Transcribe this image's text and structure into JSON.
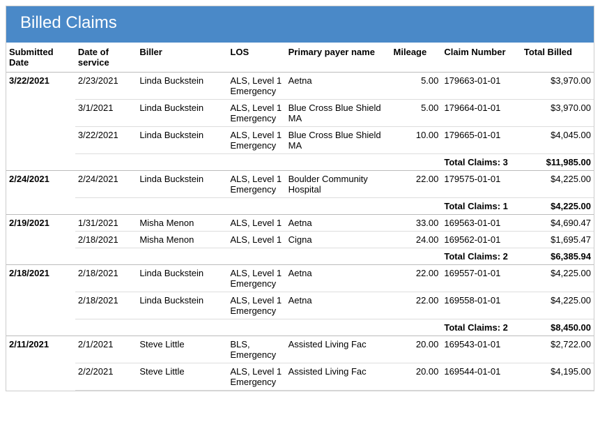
{
  "title": "Billed Claims",
  "columns": [
    "Submitted Date",
    "Date of service",
    "Biller",
    "LOS",
    "Primary payer name",
    "Mileage",
    "Claim Number",
    "Total Billed"
  ],
  "groups": [
    {
      "submitted": "3/22/2021",
      "rows": [
        {
          "dos": "2/23/2021",
          "biller": "Linda Buckstein",
          "los": "ALS, Level 1 Emergency",
          "payer": "Aetna",
          "mileage": "5.00",
          "claim": "179663-01-01",
          "billed": "$3,970.00"
        },
        {
          "dos": "3/1/2021",
          "biller": "Linda Buckstein",
          "los": "ALS, Level 1 Emergency",
          "payer": "Blue Cross Blue Shield MA",
          "mileage": "5.00",
          "claim": "179664-01-01",
          "billed": "$3,970.00"
        },
        {
          "dos": "3/22/2021",
          "biller": "Linda Buckstein",
          "los": "ALS, Level 1 Emergency",
          "payer": "Blue Cross Blue Shield MA",
          "mileage": "10.00",
          "claim": "179665-01-01",
          "billed": "$4,045.00"
        }
      ],
      "totalClaimsLabel": "Total Claims: 3",
      "totalBilled": "$11,985.00"
    },
    {
      "submitted": "2/24/2021",
      "rows": [
        {
          "dos": "2/24/2021",
          "biller": "Linda Buckstein",
          "los": "ALS, Level 1 Emergency",
          "payer": "Boulder Community Hospital",
          "mileage": "22.00",
          "claim": "179575-01-01",
          "billed": "$4,225.00"
        }
      ],
      "totalClaimsLabel": "Total Claims: 1",
      "totalBilled": "$4,225.00"
    },
    {
      "submitted": "2/19/2021",
      "rows": [
        {
          "dos": "1/31/2021",
          "biller": "Misha Menon",
          "los": "ALS, Level 1",
          "payer": "Aetna",
          "mileage": "33.00",
          "claim": "169563-01-01",
          "billed": "$4,690.47"
        },
        {
          "dos": "2/18/2021",
          "biller": "Misha Menon",
          "los": "ALS, Level 1",
          "payer": "Cigna",
          "mileage": "24.00",
          "claim": "169562-01-01",
          "billed": "$1,695.47"
        }
      ],
      "totalClaimsLabel": "Total Claims: 2",
      "totalBilled": "$6,385.94"
    },
    {
      "submitted": "2/18/2021",
      "rows": [
        {
          "dos": "2/18/2021",
          "biller": "Linda Buckstein",
          "los": "ALS, Level 1 Emergency",
          "payer": "Aetna",
          "mileage": "22.00",
          "claim": "169557-01-01",
          "billed": "$4,225.00"
        },
        {
          "dos": "2/18/2021",
          "biller": "Linda Buckstein",
          "los": "ALS, Level 1 Emergency",
          "payer": "Aetna",
          "mileage": "22.00",
          "claim": "169558-01-01",
          "billed": "$4,225.00"
        }
      ],
      "totalClaimsLabel": "Total Claims: 2",
      "totalBilled": "$8,450.00"
    },
    {
      "submitted": "2/11/2021",
      "rows": [
        {
          "dos": "2/1/2021",
          "biller": "Steve Little",
          "los": "BLS, Emergency",
          "payer": "Assisted Living Fac",
          "mileage": "20.00",
          "claim": "169543-01-01",
          "billed": "$2,722.00"
        },
        {
          "dos": "2/2/2021",
          "biller": "Steve Little",
          "los": "ALS, Level 1 Emergency",
          "payer": "Assisted Living Fac",
          "mileage": "20.00",
          "claim": "169544-01-01",
          "billed": "$4,195.00"
        }
      ]
    }
  ]
}
